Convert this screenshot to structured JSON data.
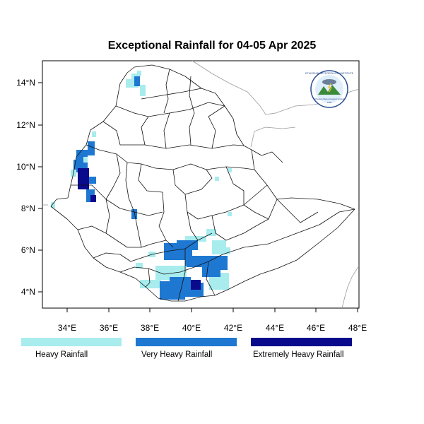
{
  "title": "Exceptional Rainfall for 04-05 Apr 2025",
  "axes": {
    "x_ticks": [
      "34°E",
      "36°E",
      "38°E",
      "40°E",
      "42°E",
      "44°E",
      "46°E",
      "48°E"
    ],
    "y_ticks": [
      "14°N",
      "12°N",
      "10°N",
      "8°N",
      "6°N",
      "4°N"
    ]
  },
  "legend": {
    "items": [
      {
        "label": "Heavy Rainfall",
        "color": "#a8ecee"
      },
      {
        "label": "Very Heavy Rainfall",
        "color": "#1e78d2"
      },
      {
        "label": "Extremely Heavy Rainfall",
        "color": "#0a0a8c"
      }
    ]
  },
  "logo": {
    "arc_text": "ETHIOPIAN METEOROLOGY INSTITUTE",
    "sub_text": "Ethiopian Meteorological Institute",
    "year": "1980"
  },
  "colors": {
    "frame": "#000000",
    "boundary": "#111111",
    "neighbor_border": "#999999"
  }
}
